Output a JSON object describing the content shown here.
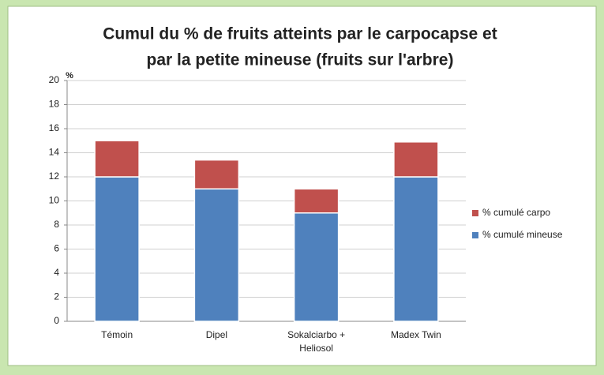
{
  "chart_data": {
    "type": "stacked_bar",
    "title": [
      "Cumul du % de fruits atteints par le carpocapse et",
      "par la petite mineuse (fruits sur l'arbre)"
    ],
    "y_label": "%",
    "categories": [
      "Témoin",
      "Dipel",
      "Sokalciarbo + Heliosol",
      "Madex Twin"
    ],
    "series": [
      {
        "name": "% cumulé mineuse",
        "color": "#4f81bd",
        "values": [
          12,
          11,
          9,
          12
        ]
      },
      {
        "name": "% cumulé carpo",
        "color": "#c0504d",
        "values": [
          3,
          2.4,
          2,
          2.9
        ]
      }
    ],
    "ylim": [
      0,
      20
    ],
    "yticks": [
      0,
      2,
      4,
      6,
      8,
      10,
      12,
      14,
      16,
      18,
      20
    ],
    "grid": true,
    "legend": "right"
  }
}
